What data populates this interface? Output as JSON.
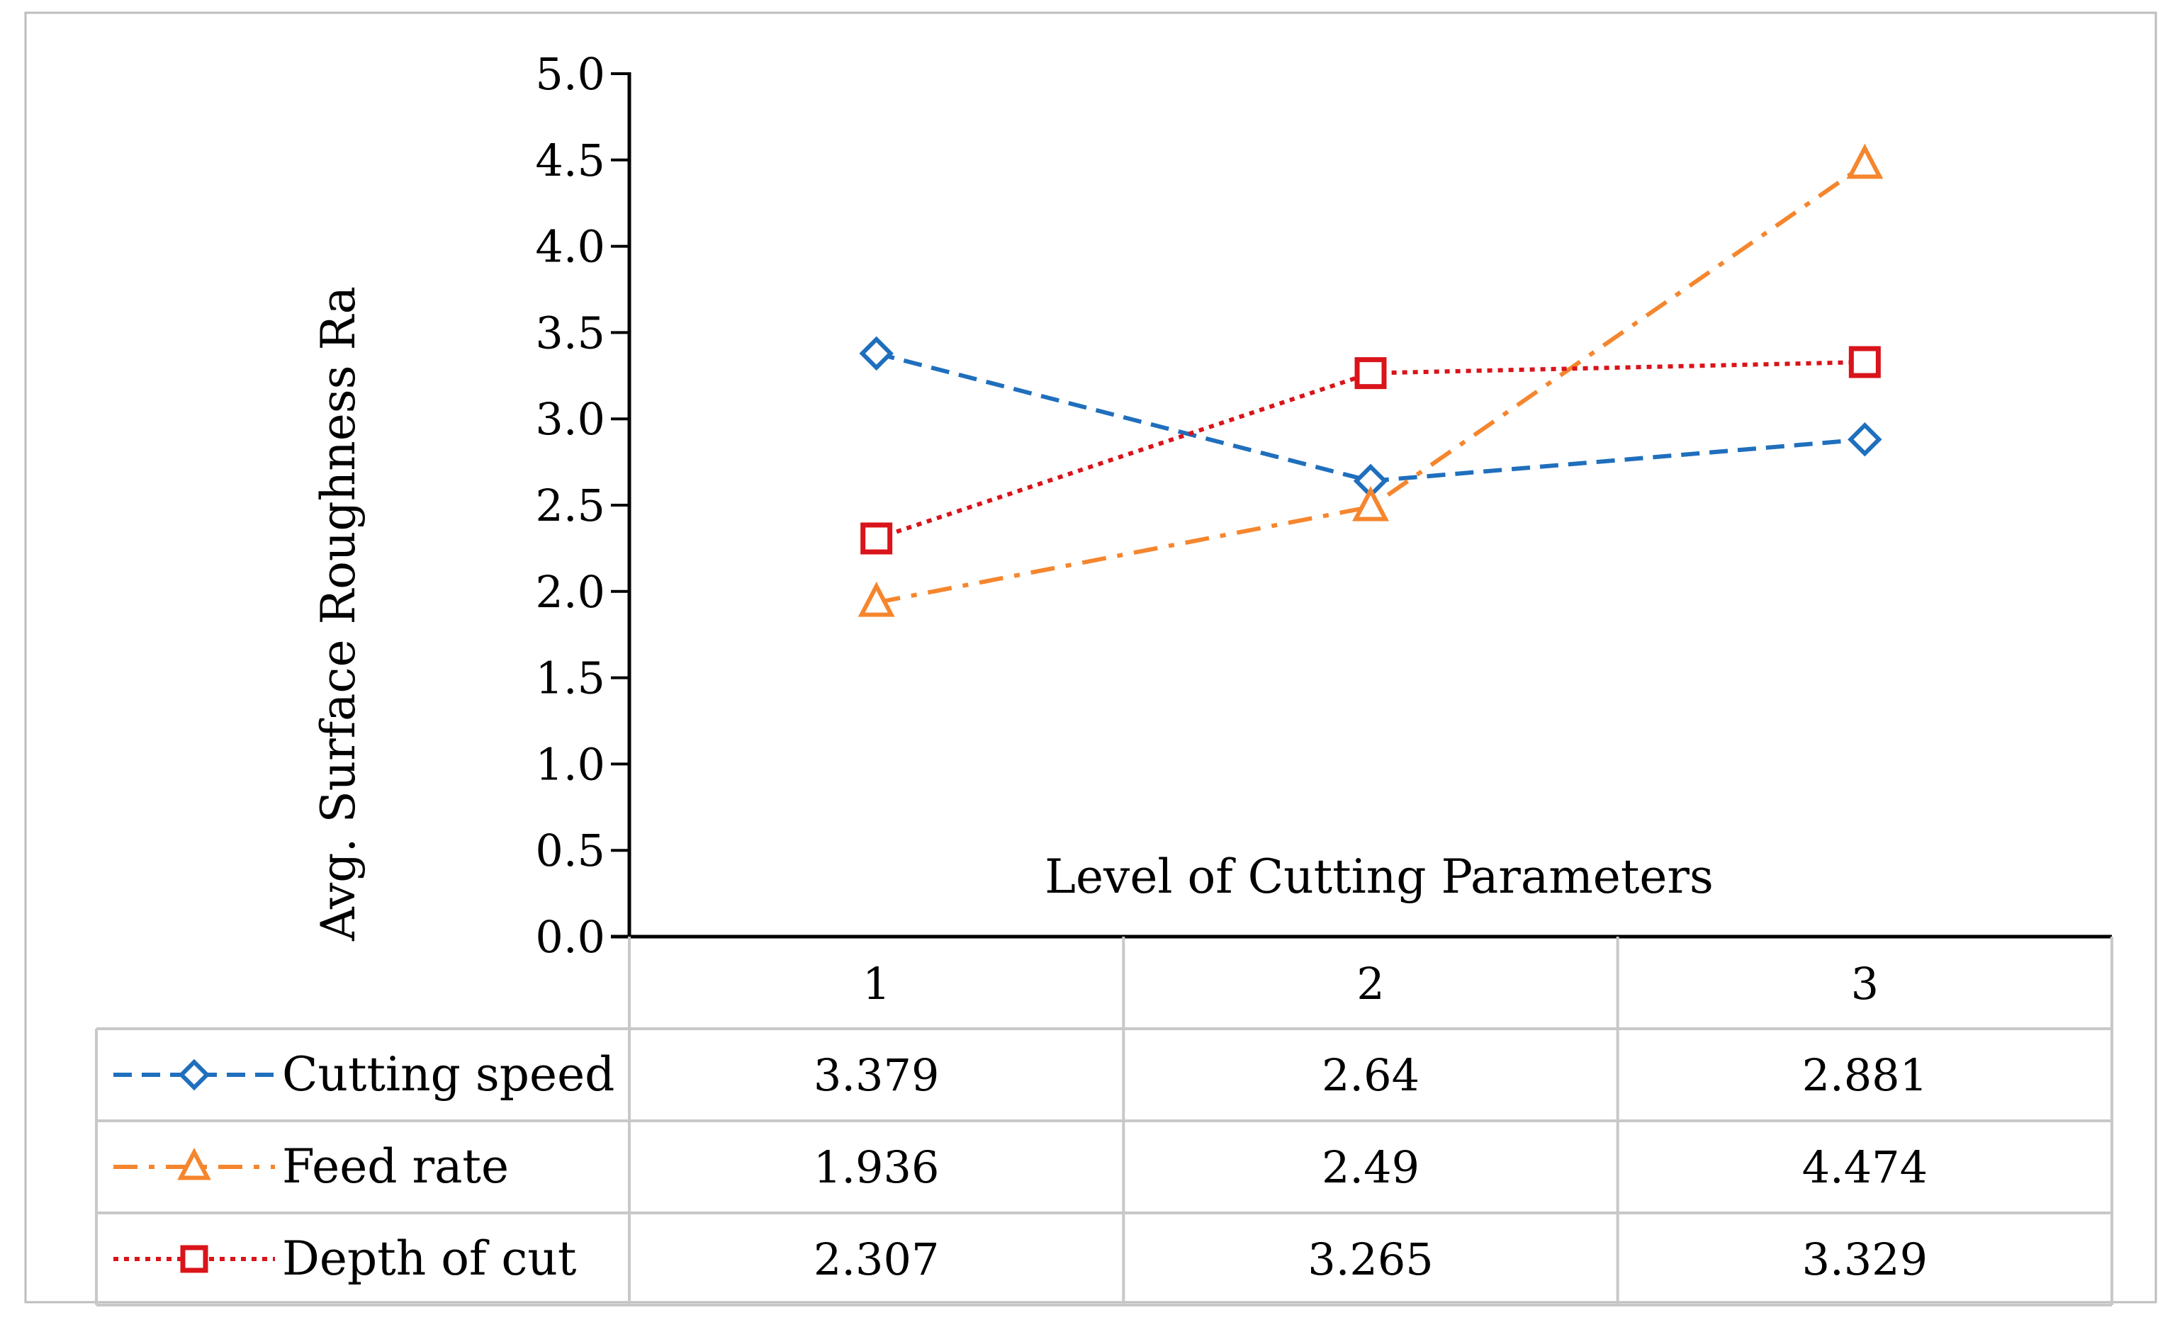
{
  "colors": {
    "cutting_speed": "#1f6fbd",
    "feed_rate": "#f5862e",
    "depth_of_cut": "#d9141a",
    "axis": "#000000",
    "table_border": "#c8c8c8",
    "frame_border": "#bdbdbd"
  },
  "chart_data": {
    "type": "line",
    "title": "",
    "xlabel": "Level of Cutting Parameters",
    "ylabel": "Avg. Surface Roughness Ra",
    "categories": [
      "1",
      "2",
      "3"
    ],
    "ylim": [
      0,
      5
    ],
    "yticks": [
      "0.0",
      "0.5",
      "1.0",
      "1.5",
      "2.0",
      "2.5",
      "3.0",
      "3.5",
      "4.0",
      "4.5",
      "5.0"
    ],
    "grid": false,
    "legend": "data-table-left",
    "series": [
      {
        "key": "cutting_speed",
        "name": "Cutting speed",
        "marker": "diamond",
        "dash": "dashed",
        "values": [
          3.379,
          2.64,
          2.881
        ],
        "labels": [
          "3.379",
          "2.64",
          "2.881"
        ]
      },
      {
        "key": "feed_rate",
        "name": "Feed rate",
        "marker": "triangle",
        "dash": "dash-dot",
        "values": [
          1.936,
          2.49,
          4.474
        ],
        "labels": [
          "1.936",
          "2.49",
          "4.474"
        ]
      },
      {
        "key": "depth_of_cut",
        "name": "Depth of cut",
        "marker": "square",
        "dash": "dotted",
        "values": [
          2.307,
          3.265,
          3.329
        ],
        "labels": [
          "2.307",
          "3.265",
          "3.329"
        ]
      }
    ]
  }
}
